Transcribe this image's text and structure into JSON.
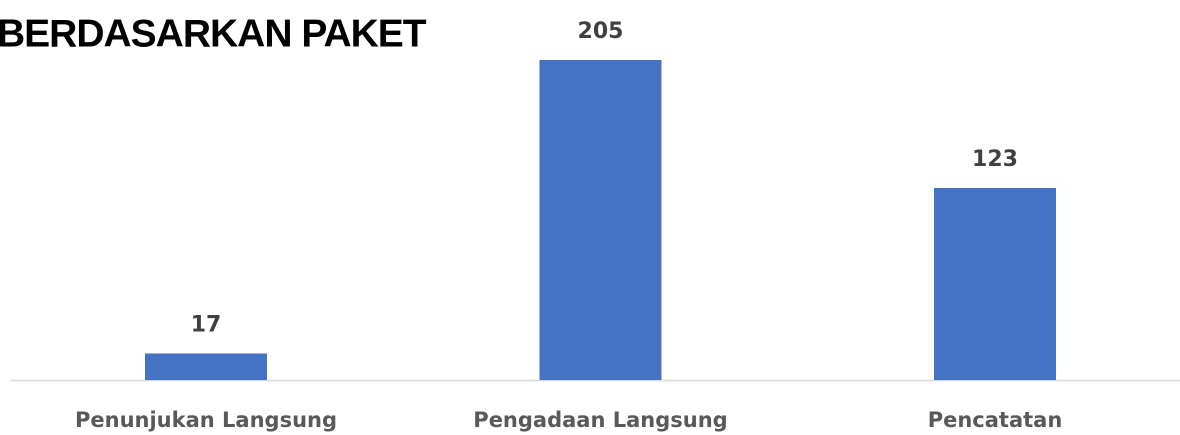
{
  "chart_data": {
    "type": "bar",
    "title": "BERDASARKAN PAKET",
    "categories": [
      "Penunjukan Langsung",
      "Pengadaan Langsung",
      "Pencatatan"
    ],
    "values": [
      17,
      205,
      123
    ],
    "color": "#4472c4"
  }
}
